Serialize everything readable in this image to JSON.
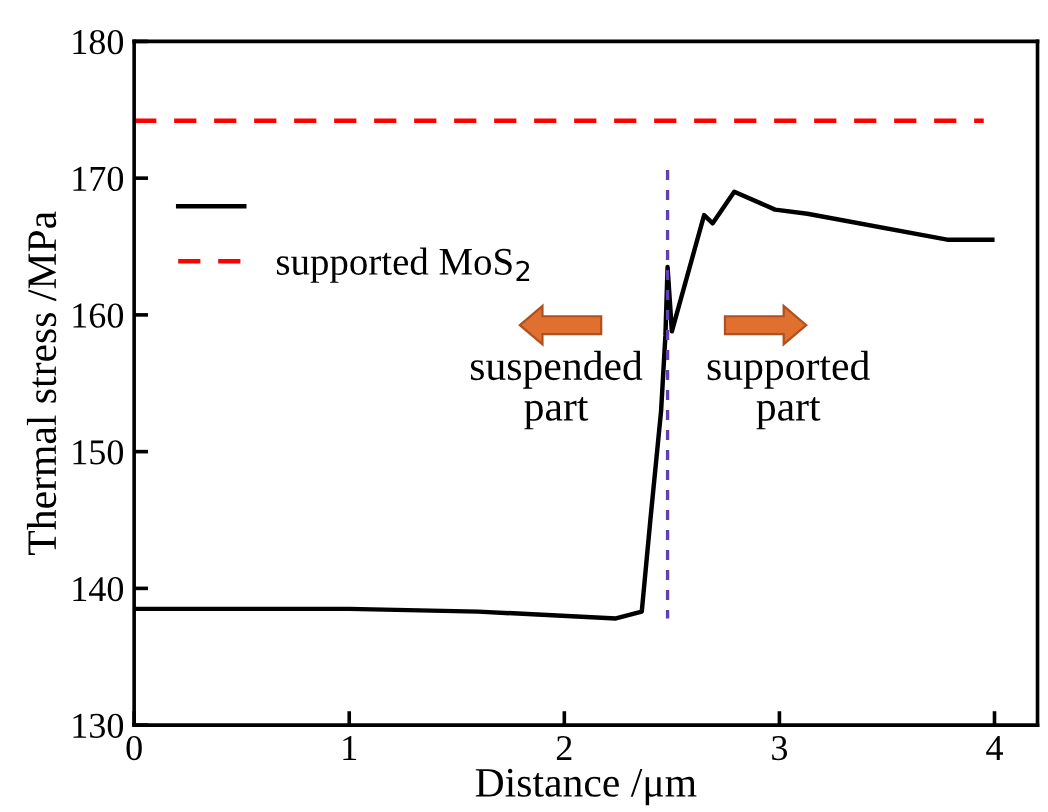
{
  "chart_data": {
    "type": "line",
    "xlabel": "Distance /μm",
    "ylabel": "Thermal stress /MPa",
    "xlim": [
      0,
      4.2
    ],
    "ylim": [
      130,
      180
    ],
    "xticks": [
      0,
      1,
      2,
      3,
      4
    ],
    "yticks": [
      130,
      140,
      150,
      160,
      170,
      180
    ],
    "grid": false,
    "legend": "top left",
    "marker": "none",
    "series": [
      {
        "color": "#000000",
        "line_style": "solid",
        "x": [
          0,
          1.0,
          1.6,
          2.24,
          2.36,
          2.4,
          2.45,
          2.47,
          2.48,
          2.5,
          2.65,
          2.69,
          2.79,
          2.98,
          3.13,
          3.78,
          3.99
        ],
        "values": [
          138.5,
          138.5,
          138.3,
          137.8,
          138.3,
          145,
          153,
          158.5,
          163.5,
          158.8,
          167.3,
          166.7,
          169.0,
          167.7,
          167.4,
          165.5,
          165.5
        ]
      },
      {
        "name": "supported MoS$_{2}$",
        "color": "#ff0000",
        "line_style": "dashed",
        "x": [
          0,
          3.95
        ],
        "values": [
          174.2,
          174.2
        ]
      },
      {
        "color": "#6040b0",
        "line_style": "dotted",
        "x": [
          2.48,
          2.48
        ],
        "values": [
          170.6,
          137.8
        ]
      }
    ],
    "annotations": [
      "suspended\npart",
      "supported\npart"
    ]
  }
}
